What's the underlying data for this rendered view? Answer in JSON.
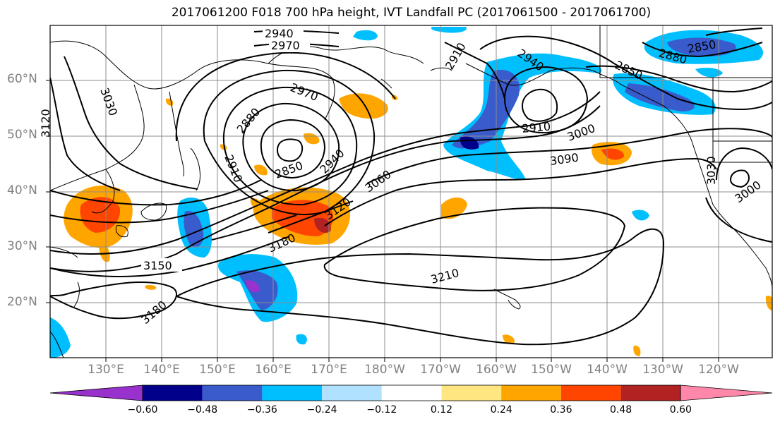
{
  "title": "2017061200 F018 700 hPa height, IVT Landfall PC (2017061500 - 2017061700)",
  "lat_labels": [
    "60°N",
    "50°N",
    "40°N",
    "30°N",
    "20°N"
  ],
  "lon_labels": [
    "130°E",
    "140°E",
    "150°E",
    "160°E",
    "170°E",
    "180°W",
    "170°W",
    "160°W",
    "150°W",
    "140°W",
    "130°W",
    "120°W"
  ],
  "contour_labels": [
    "2940",
    "2970",
    "2970",
    "2880",
    "2910",
    "2850",
    "2940",
    "3060",
    "3120",
    "3180",
    "3150",
    "3180",
    "3210",
    "2910",
    "2940",
    "2910",
    "3000",
    "3090",
    "3030",
    "3000",
    "3120",
    "3030",
    "2880",
    "2850",
    "2850"
  ],
  "colorbar": {
    "ticks": [
      "−0.60",
      "−0.48",
      "−0.36",
      "−0.24",
      "−0.12",
      "0.12",
      "0.24",
      "0.36",
      "0.48",
      "0.60"
    ],
    "colors": [
      "#9932cc",
      "#00008b",
      "#3a5bcc",
      "#00bfff",
      "#b0e2ff",
      "#ffffff",
      "#ffe680",
      "#ffa500",
      "#ff4500",
      "#b22222",
      "#ff88aa"
    ]
  }
}
